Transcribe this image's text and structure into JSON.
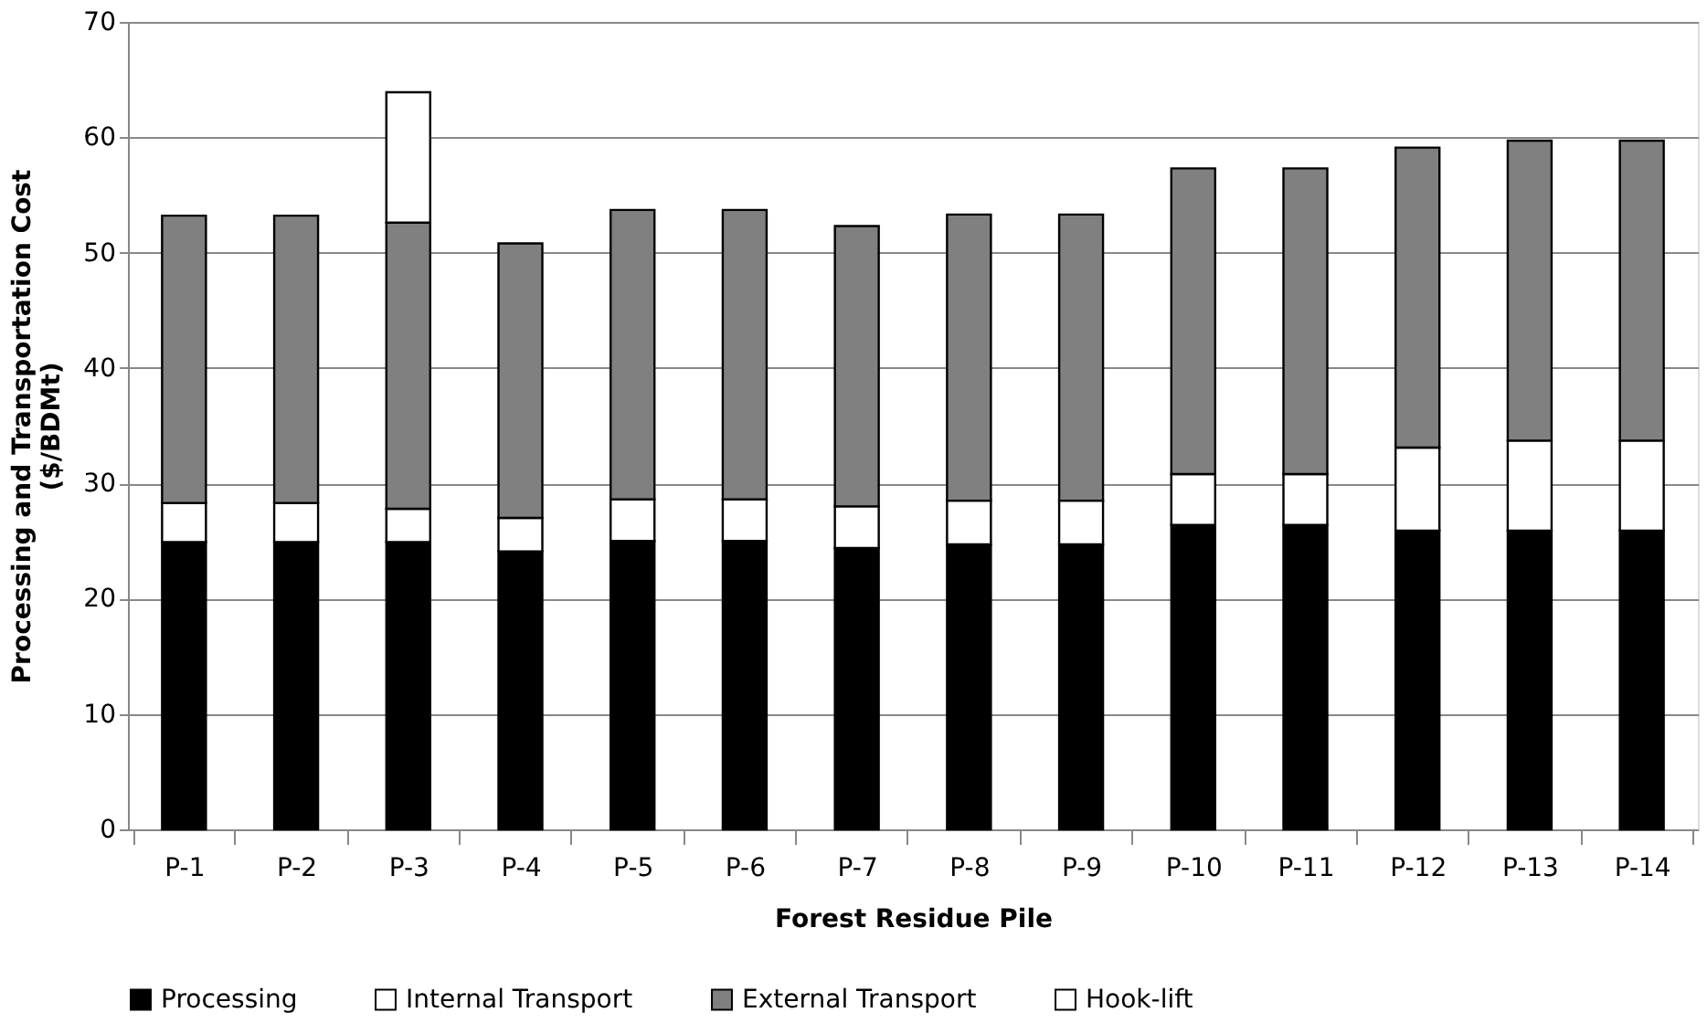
{
  "chart_data": {
    "type": "bar",
    "stacked": true,
    "xlabel": "Forest Residue Pile",
    "ylabel": "Processing and Transportation Cost\n($/BDMt)",
    "categories": [
      "P-1",
      "P-2",
      "P-3",
      "P-4",
      "P-5",
      "P-6",
      "P-7",
      "P-8",
      "P-9",
      "P-10",
      "P-11",
      "P-12",
      "P-13",
      "P-14"
    ],
    "series": [
      {
        "name": "Processing",
        "color": "#000000",
        "values": [
          24.9,
          24.9,
          24.9,
          24.1,
          25.0,
          25.0,
          24.4,
          24.7,
          24.7,
          26.4,
          26.4,
          25.9,
          25.9,
          25.9
        ]
      },
      {
        "name": "Internal Transport",
        "color": "#ffffff",
        "values": [
          3.4,
          3.4,
          2.9,
          2.9,
          3.6,
          3.6,
          3.6,
          3.8,
          3.8,
          4.4,
          4.4,
          7.2,
          7.8,
          7.8
        ]
      },
      {
        "name": "External Transport",
        "color": "#808080",
        "values": [
          24.9,
          24.9,
          24.8,
          23.8,
          25.1,
          25.1,
          24.3,
          24.8,
          24.8,
          26.5,
          26.5,
          26.0,
          26.0,
          26.0
        ]
      },
      {
        "name": "Hook-lift",
        "color": "#ffffff",
        "values": [
          null,
          null,
          11.3,
          null,
          null,
          null,
          null,
          null,
          null,
          null,
          null,
          null,
          null,
          null
        ]
      }
    ],
    "ylim": [
      0,
      70
    ],
    "yticks": [
      0,
      10,
      20,
      30,
      40,
      50,
      60,
      70
    ],
    "grid": "y",
    "legend": "bottom"
  }
}
